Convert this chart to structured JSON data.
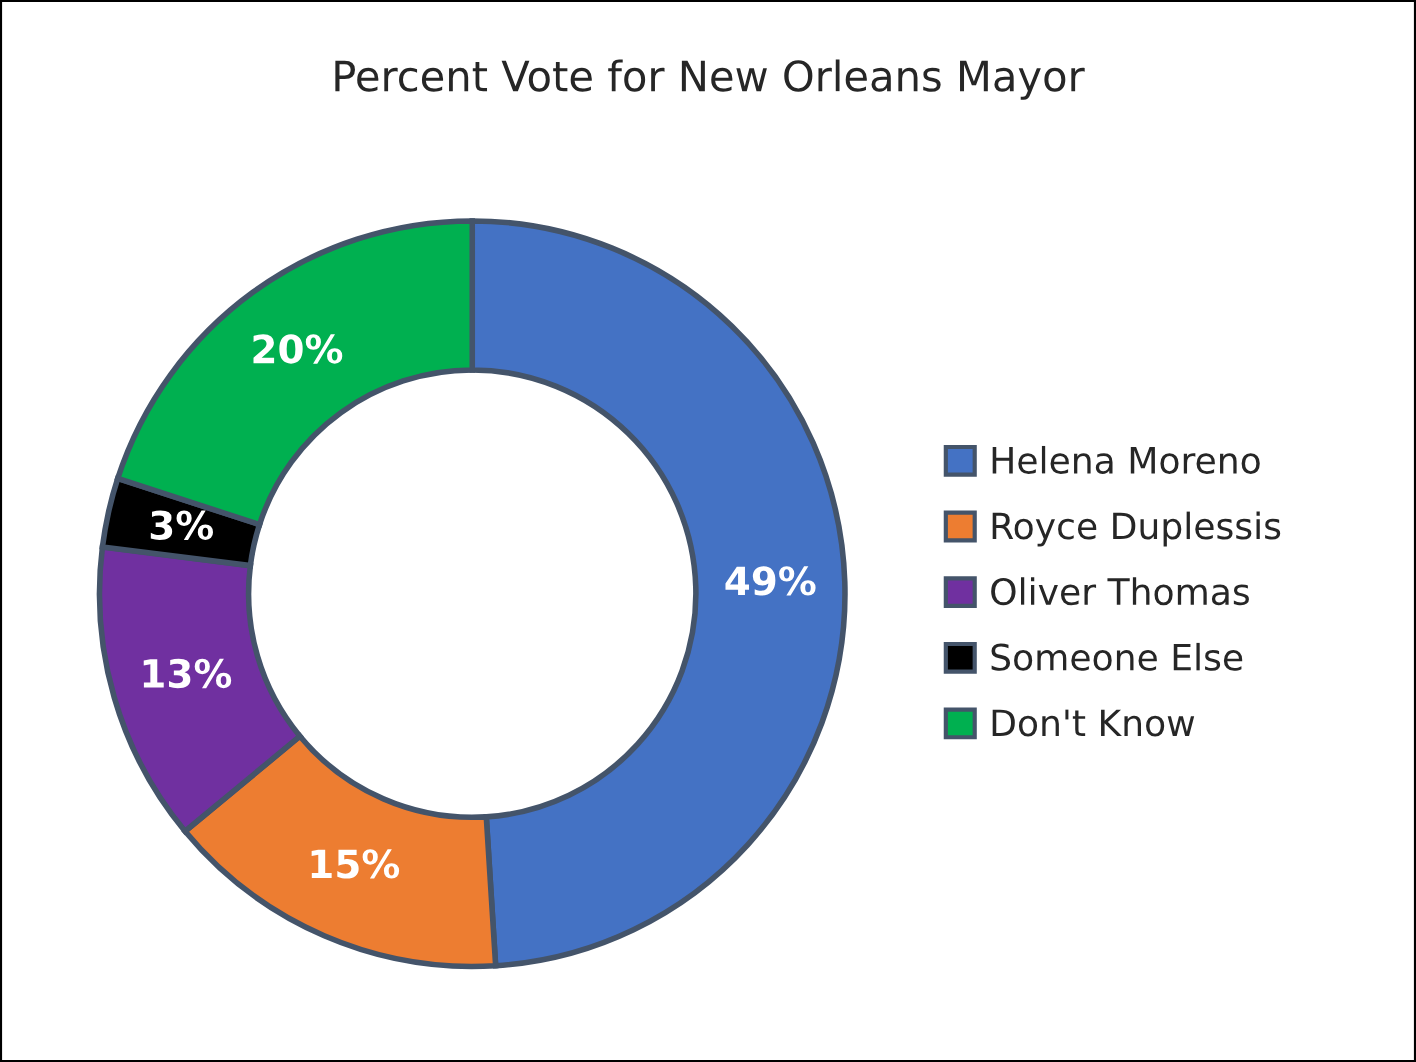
{
  "chart_data": {
    "type": "donut",
    "title": "Percent Vote for New Orleans Mayor",
    "categories": [
      "Helena Moreno",
      "Royce Duplessis",
      "Oliver Thomas",
      "Someone Else",
      "Don't Know"
    ],
    "values": [
      49,
      15,
      13,
      3,
      20
    ],
    "colors": [
      "#4472c4",
      "#ed7d31",
      "#7030a0",
      "#000000",
      "#00b050"
    ],
    "value_labels": [
      "49%",
      "15%",
      "13%",
      "3%",
      "20%"
    ],
    "legend": "right"
  }
}
